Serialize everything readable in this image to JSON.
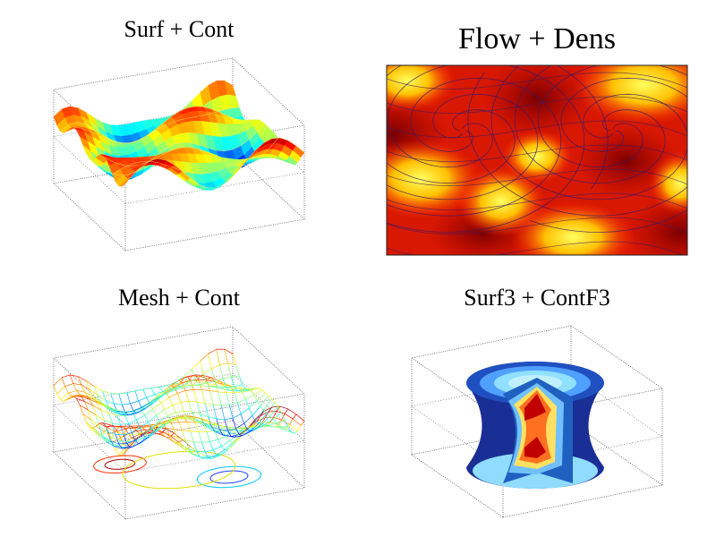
{
  "chart_data": [
    {
      "type": "surface",
      "title": "Surf + Cont"
    },
    {
      "type": "flow",
      "title": "Flow + Dens"
    },
    {
      "type": "mesh",
      "title": "Mesh + Cont"
    },
    {
      "type": "surf3",
      "title": "Surf3 + ContF3"
    }
  ]
}
